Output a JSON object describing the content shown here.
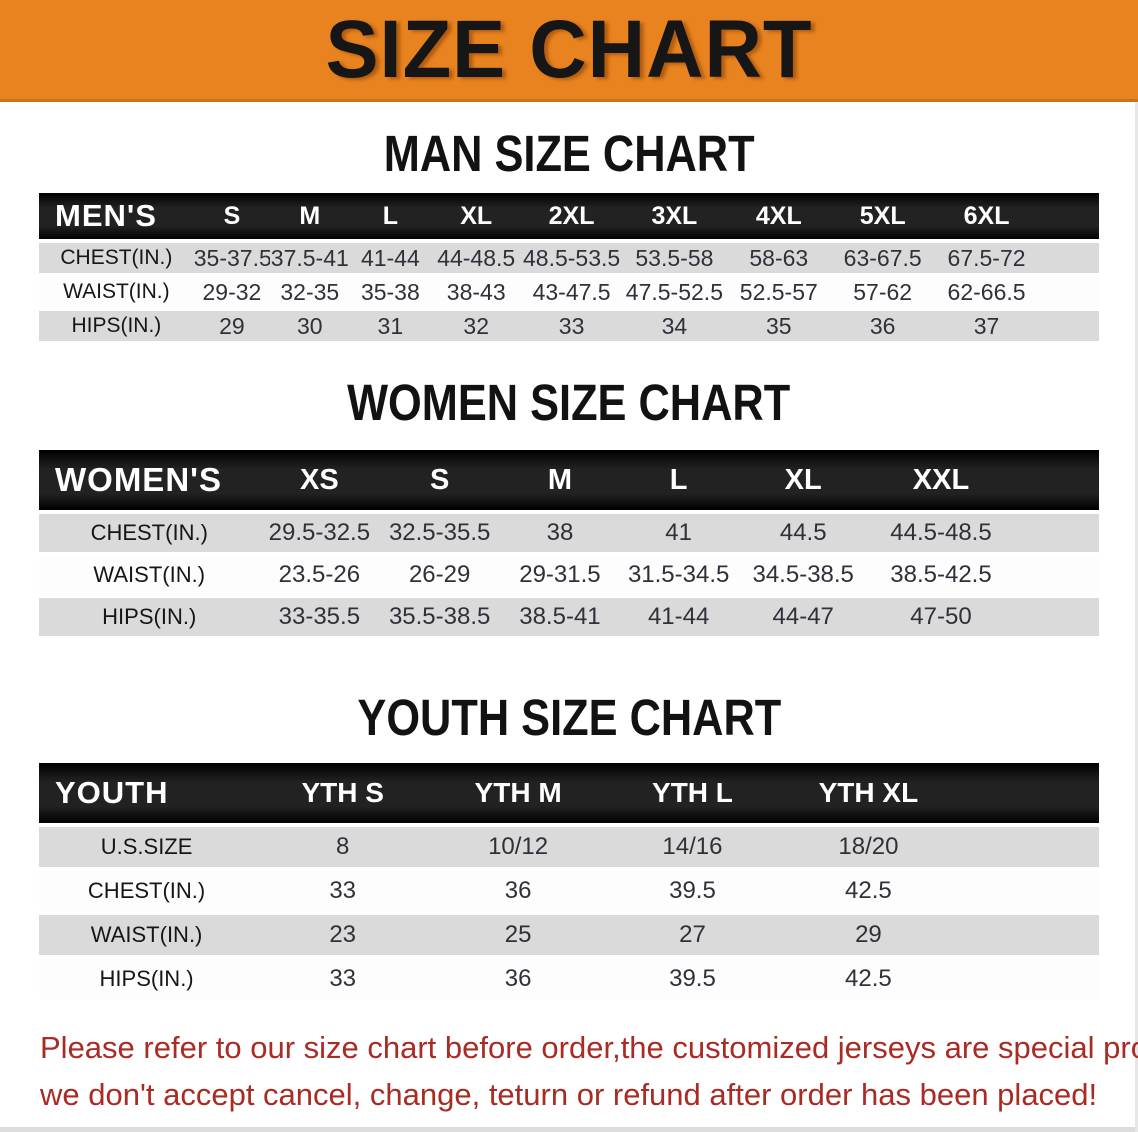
{
  "banner": {
    "title": "SIZE CHART"
  },
  "sections": [
    {
      "title": "MAN SIZE CHART",
      "table": {
        "header": [
          "MEN'S",
          "S",
          "M",
          "L",
          "XL",
          "2XL",
          "3XL",
          "4XL",
          "5XL",
          "6XL"
        ],
        "rows": [
          {
            "label": "CHEST(IN.)",
            "values": [
              "35-37.5",
              "37.5-41",
              "41-44",
              "44-48.5",
              "48.5-53.5",
              "53.5-58",
              "58-63",
              "63-67.5",
              "67.5-72"
            ]
          },
          {
            "label": "WAIST(IN.)",
            "values": [
              "29-32",
              "32-35",
              "35-38",
              "38-43",
              "43-47.5",
              "47.5-52.5",
              "52.5-57",
              "57-62",
              "62-66.5"
            ]
          },
          {
            "label": "HIPS(IN.)",
            "values": [
              "29",
              "30",
              "31",
              "32",
              "33",
              "34",
              "35",
              "36",
              "37"
            ]
          }
        ]
      }
    },
    {
      "title": "WOMEN SIZE CHART",
      "table": {
        "header": [
          "WOMEN'S",
          "XS",
          "S",
          "M",
          "L",
          "XL",
          "XXL"
        ],
        "rows": [
          {
            "label": "CHEST(IN.)",
            "values": [
              "29.5-32.5",
              "32.5-35.5",
              "38",
              "41",
              "44.5",
              "44.5-48.5"
            ]
          },
          {
            "label": "WAIST(IN.)",
            "values": [
              "23.5-26",
              "26-29",
              "29-31.5",
              "31.5-34.5",
              "34.5-38.5",
              "38.5-42.5"
            ]
          },
          {
            "label": "HIPS(IN.)",
            "values": [
              "33-35.5",
              "35.5-38.5",
              "38.5-41",
              "41-44",
              "44-47",
              "47-50"
            ]
          }
        ]
      }
    },
    {
      "title": "YOUTH SIZE CHART",
      "table": {
        "header": [
          "YOUTH",
          "YTH S",
          "YTH M",
          "YTH L",
          "YTH XL"
        ],
        "rows": [
          {
            "label": "U.S.SIZE",
            "values": [
              "8",
              "10/12",
              "14/16",
              "18/20"
            ]
          },
          {
            "label": "CHEST(IN.)",
            "values": [
              "33",
              "36",
              "39.5",
              "42.5"
            ]
          },
          {
            "label": "WAIST(IN.)",
            "values": [
              "23",
              "25",
              "27",
              "29"
            ]
          },
          {
            "label": "HIPS(IN.)",
            "values": [
              "33",
              "36",
              "39.5",
              "42.5"
            ]
          }
        ]
      }
    }
  ],
  "disclaimer": {
    "line1": "Please refer to our size chart before order,the customized jerseys are special products,",
    "line2": "we don't accept cancel, change, teturn or refund after order has been placed!"
  },
  "colors": {
    "banner_orange": "#E8831F",
    "header_band_black": "#1A1A1A",
    "stripe_gray": "#DADADA",
    "disclaimer_red": "#A92B24"
  }
}
